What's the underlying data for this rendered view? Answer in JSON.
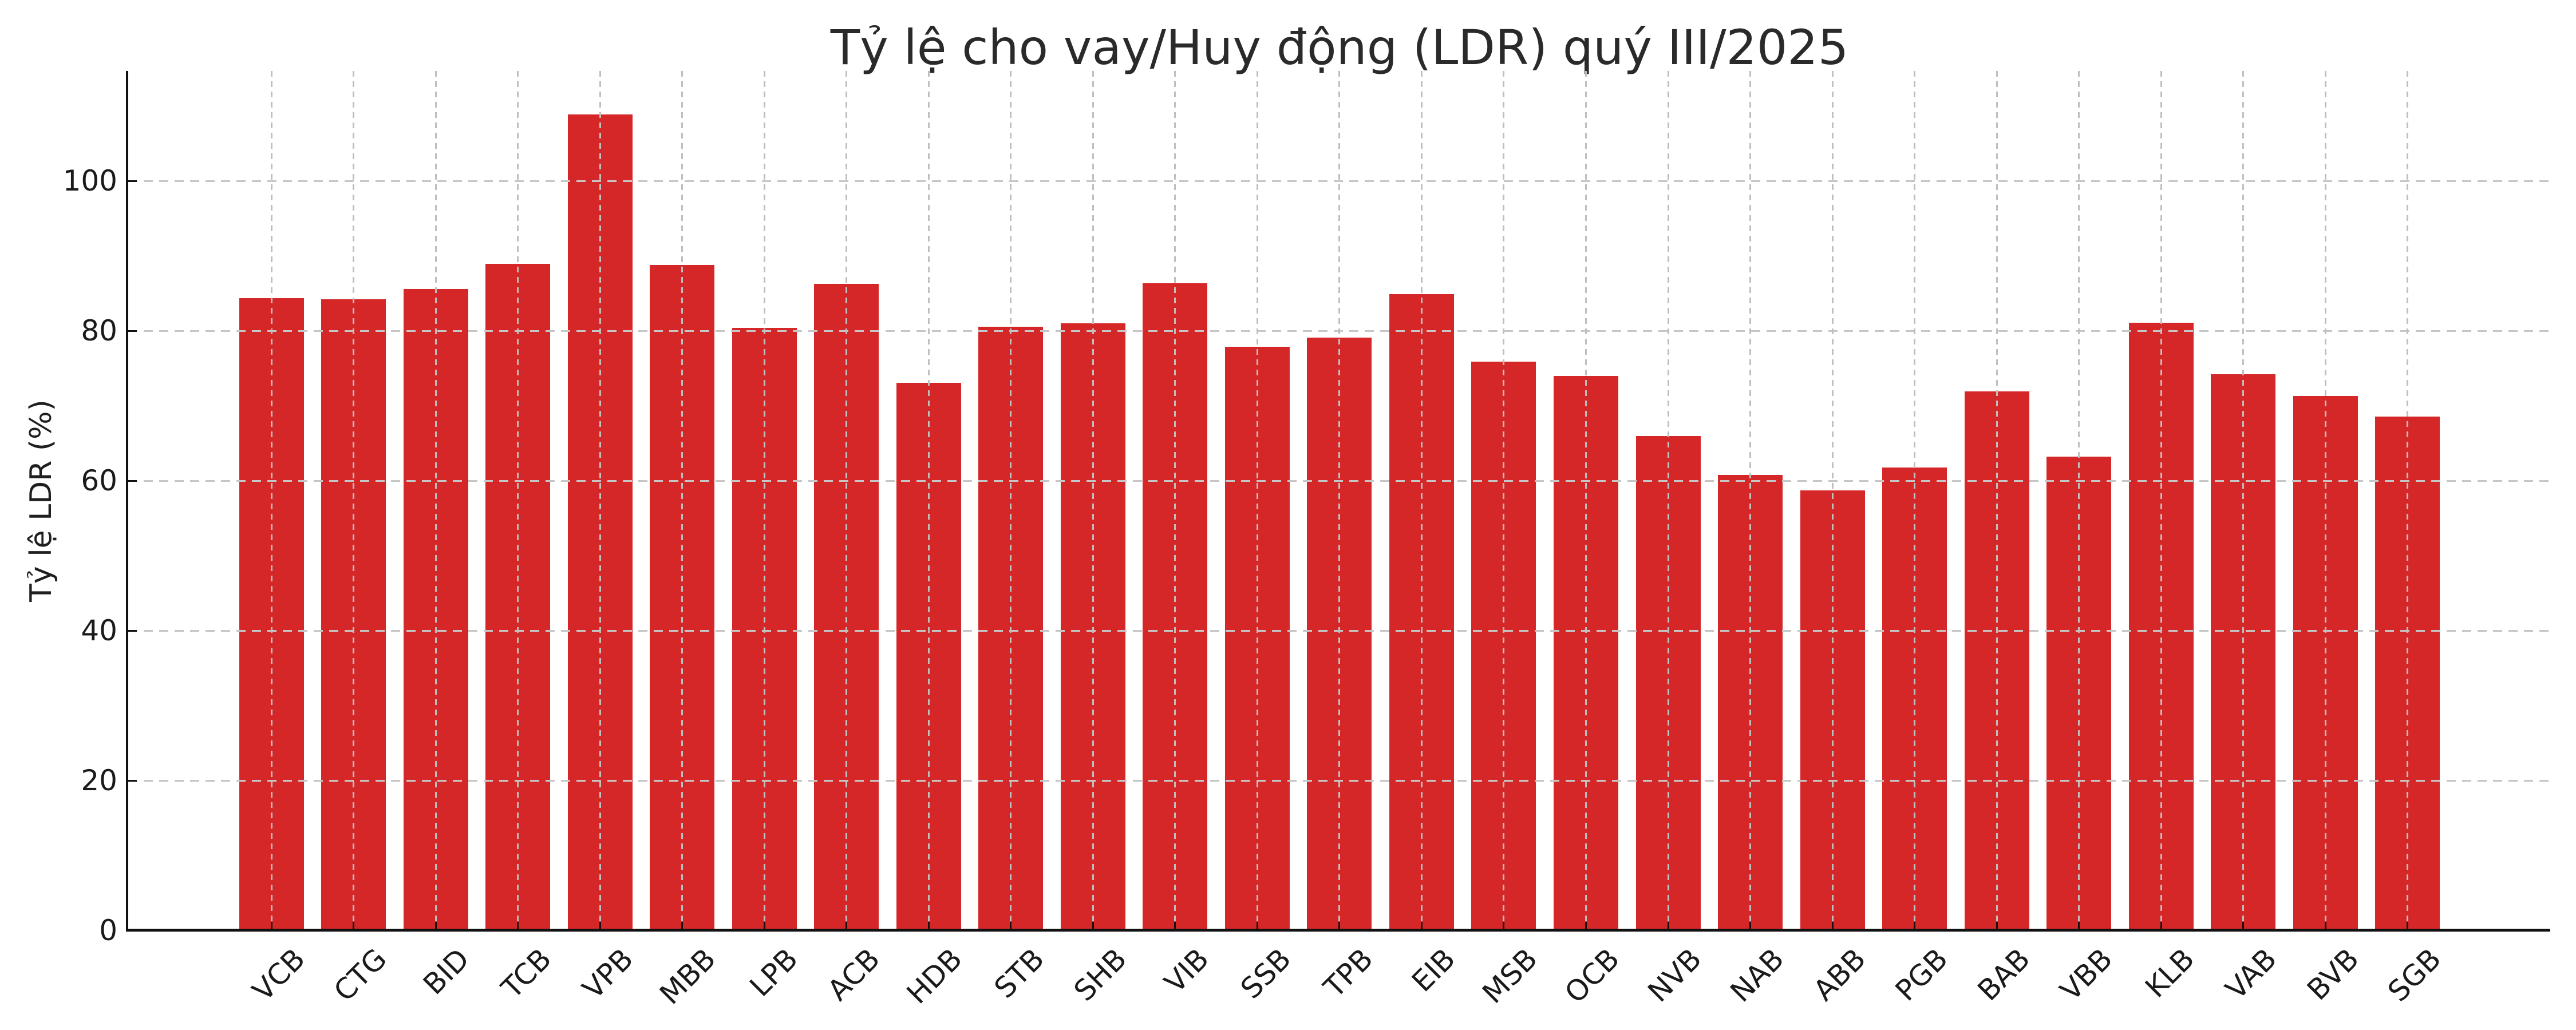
{
  "title": "Tỷ lệ cho vay/Huy động (LDR) quý III/2025",
  "chart_data": {
    "type": "bar",
    "title": "Tỷ lệ cho vay/Huy động (LDR) quý III/2025",
    "xlabel": "",
    "ylabel": "Tỷ lệ LDR (%)",
    "categories": [
      "VCB",
      "CTG",
      "BID",
      "TCB",
      "VPB",
      "MBB",
      "LPB",
      "ACB",
      "HDB",
      "STB",
      "SHB",
      "VIB",
      "SSB",
      "TPB",
      "EIB",
      "MSB",
      "OCB",
      "NVB",
      "NAB",
      "ABB",
      "PGB",
      "BAB",
      "VBB",
      "KLB",
      "VAB",
      "BVB",
      "SGB"
    ],
    "values": [
      84.4,
      84.2,
      85.6,
      89.0,
      108.9,
      88.8,
      80.4,
      86.3,
      73.1,
      80.6,
      81.0,
      86.4,
      77.9,
      79.1,
      84.9,
      75.9,
      74.0,
      66.0,
      60.8,
      58.7,
      61.8,
      71.9,
      63.2,
      81.1,
      74.2,
      71.3,
      68.6
    ],
    "yticks": [
      0,
      20,
      40,
      60,
      80,
      100
    ],
    "ylim": [
      0,
      114.7
    ],
    "grid": "dashed-both-axes",
    "legend": "none",
    "bar_color": "#d62728",
    "grid_color": "#c6c6c6",
    "text_color": "#1f1f1f",
    "spine_color": "#111111",
    "background_color": "#ffffff"
  }
}
